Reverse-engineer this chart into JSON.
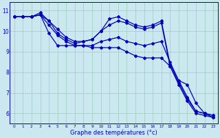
{
  "xlabel": "Graphe des températures (°c)",
  "bg_color": "#cbe8f0",
  "line_color": "#0000bb",
  "grid_color": "#99ccbb",
  "xlim": [
    -0.5,
    23.5
  ],
  "ylim": [
    5.5,
    11.4
  ],
  "xticks": [
    0,
    1,
    2,
    3,
    4,
    5,
    6,
    7,
    8,
    9,
    10,
    11,
    12,
    13,
    14,
    15,
    16,
    17,
    18,
    19,
    20,
    21,
    22,
    23
  ],
  "yticks": [
    6,
    7,
    8,
    9,
    10,
    11
  ],
  "series": [
    [
      10.7,
      10.7,
      10.7,
      10.8,
      10.5,
      10.1,
      9.7,
      9.5,
      9.5,
      9.6,
      10.0,
      10.6,
      10.7,
      10.5,
      10.3,
      10.2,
      10.3,
      10.5,
      8.4,
      7.6,
      7.4,
      6.5,
      6.0,
      5.8
    ],
    [
      10.7,
      10.7,
      10.7,
      10.9,
      10.5,
      9.9,
      9.6,
      9.4,
      9.5,
      9.6,
      10.0,
      10.3,
      10.5,
      10.4,
      10.2,
      10.1,
      10.2,
      10.4,
      8.3,
      7.4,
      6.6,
      6.0,
      5.9,
      5.8
    ],
    [
      10.7,
      10.7,
      10.7,
      10.8,
      9.9,
      9.3,
      9.3,
      9.3,
      9.3,
      9.3,
      9.5,
      9.6,
      9.7,
      9.5,
      9.4,
      9.3,
      9.4,
      9.5,
      8.5,
      7.6,
      6.8,
      6.1,
      6.0,
      5.9
    ],
    [
      10.7,
      10.7,
      10.7,
      10.8,
      10.3,
      9.8,
      9.5,
      9.3,
      9.3,
      9.2,
      9.2,
      9.2,
      9.2,
      9.0,
      8.8,
      8.7,
      8.7,
      8.7,
      8.3,
      7.5,
      6.7,
      6.1,
      6.0,
      5.9
    ]
  ]
}
